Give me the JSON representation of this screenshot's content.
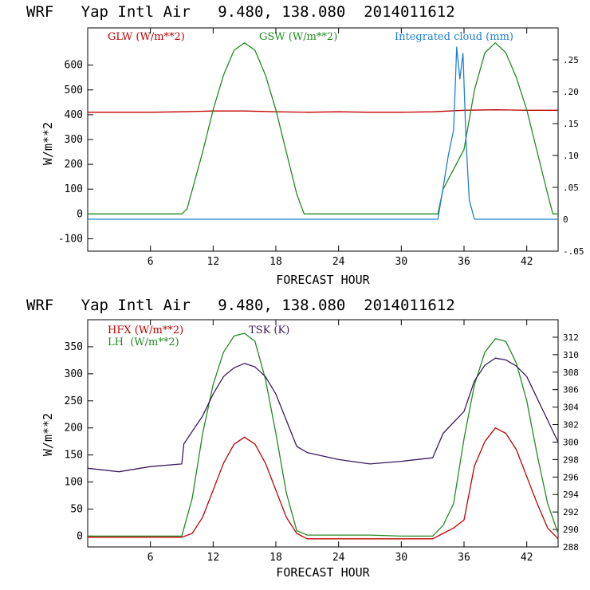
{
  "chart_data": [
    {
      "type": "line",
      "title": "WRF   Yap Intl Air   9.480, 138.080  2014011612",
      "xlabel": "FORECAST HOUR",
      "ylabel": "W/m**2",
      "xlim": [
        0,
        45
      ],
      "ylim": [
        -150,
        750
      ],
      "xticks": [
        6,
        12,
        18,
        24,
        30,
        36,
        42
      ],
      "yticks": [
        -100,
        0,
        100,
        200,
        300,
        400,
        500,
        600
      ],
      "y2lim": [
        -0.05,
        0.3
      ],
      "y2ticks": [
        ".25",
        ".20",
        ".15",
        ".10",
        ".05",
        "0",
        "-.05"
      ],
      "y2tick_values": [
        0.25,
        0.2,
        0.15,
        0.1,
        0.05,
        0,
        -0.05
      ],
      "legend_placement": "top",
      "series": [
        {
          "name": "GLW (W/m**2)",
          "color": "#c00000",
          "axis": "left",
          "x": [
            0,
            6,
            9,
            12,
            15,
            18,
            21,
            24,
            27,
            30,
            33,
            36,
            39,
            42,
            45
          ],
          "y": [
            410,
            410,
            412,
            415,
            415,
            412,
            410,
            412,
            410,
            410,
            412,
            418,
            420,
            418,
            418
          ]
        },
        {
          "name": "GSW (W/m**2)",
          "color": "#228b22",
          "axis": "left",
          "x": [
            0,
            9,
            9.5,
            11,
            12,
            13,
            14,
            15,
            16,
            17,
            18,
            19,
            20,
            20.7,
            24,
            33.5,
            34,
            35,
            36,
            37,
            38,
            39,
            40,
            41,
            42,
            43,
            44,
            44.5,
            45
          ],
          "y": [
            0,
            0,
            20,
            250,
            420,
            560,
            660,
            690,
            660,
            560,
            420,
            250,
            80,
            0,
            0,
            0,
            100,
            180,
            260,
            500,
            650,
            690,
            650,
            550,
            420,
            250,
            80,
            0,
            0
          ]
        },
        {
          "name": "Integrated cloud (mm)",
          "color": "#1e7fd8",
          "axis": "right",
          "x": [
            0,
            33.5,
            34,
            34.5,
            35,
            35.3,
            35.6,
            35.9,
            36.2,
            36.5,
            37,
            45
          ],
          "y": [
            0,
            0,
            0.05,
            0.1,
            0.14,
            0.27,
            0.22,
            0.26,
            0.12,
            0.03,
            0,
            0
          ]
        }
      ]
    },
    {
      "type": "line",
      "title": "WRF   Yap Intl Air   9.480, 138.080  2014011612",
      "xlabel": "FORECAST HOUR",
      "ylabel": "W/m**2",
      "xlim": [
        0,
        45
      ],
      "ylim": [
        -20,
        400
      ],
      "xticks": [
        6,
        12,
        18,
        24,
        30,
        36,
        42
      ],
      "yticks": [
        0,
        50,
        100,
        150,
        200,
        250,
        300,
        350
      ],
      "y2lim": [
        288,
        314
      ],
      "y2ticks": [
        288,
        290,
        292,
        294,
        296,
        298,
        300,
        302,
        304,
        306,
        308,
        310,
        312
      ],
      "legend_placement": "top-left",
      "series": [
        {
          "name": "HFX (W/m**2)",
          "color": "#c00000",
          "axis": "left",
          "x": [
            0,
            9,
            10,
            11,
            12,
            13,
            14,
            15,
            16,
            17,
            18,
            19,
            20,
            21,
            24,
            27,
            30,
            33,
            34,
            35,
            36,
            37,
            38,
            39,
            40,
            41,
            42,
            43,
            44,
            45
          ],
          "y": [
            -2,
            -2,
            5,
            35,
            85,
            135,
            170,
            183,
            170,
            135,
            85,
            35,
            5,
            -5,
            -5,
            -5,
            -5,
            -5,
            5,
            15,
            30,
            130,
            175,
            200,
            190,
            160,
            110,
            60,
            15,
            -5
          ]
        },
        {
          "name": "LH  (W/m**2)",
          "color": "#228b22",
          "axis": "left",
          "x": [
            0,
            9,
            10,
            11,
            12,
            13,
            14,
            15,
            16,
            17,
            18,
            19,
            20,
            21,
            24,
            27,
            30,
            33,
            34,
            35,
            36,
            37,
            38,
            39,
            40,
            41,
            42,
            43,
            44,
            45
          ],
          "y": [
            0,
            0,
            70,
            190,
            280,
            340,
            370,
            375,
            360,
            290,
            190,
            80,
            10,
            2,
            2,
            2,
            0,
            0,
            20,
            60,
            180,
            280,
            340,
            365,
            360,
            320,
            250,
            150,
            60,
            5
          ]
        },
        {
          "name": "TSK (K)",
          "color": "#3b1a5c",
          "axis": "right",
          "x": [
            0,
            3,
            6,
            9,
            9.2,
            11,
            12,
            13,
            14,
            15,
            16,
            17,
            18,
            19,
            20,
            21,
            24,
            27,
            30,
            33,
            34,
            36,
            37,
            38,
            39,
            40,
            41,
            42,
            43,
            44,
            45
          ],
          "y": [
            297.0,
            296.6,
            297.2,
            297.5,
            299.8,
            303.0,
            305.5,
            307.5,
            308.5,
            309.0,
            308.6,
            307.5,
            305.5,
            302.5,
            299.5,
            298.8,
            298.0,
            297.5,
            297.8,
            298.2,
            301.0,
            303.5,
            307.0,
            308.8,
            309.6,
            309.4,
            308.7,
            307.5,
            305.0,
            302.5,
            300.0
          ]
        }
      ]
    }
  ]
}
